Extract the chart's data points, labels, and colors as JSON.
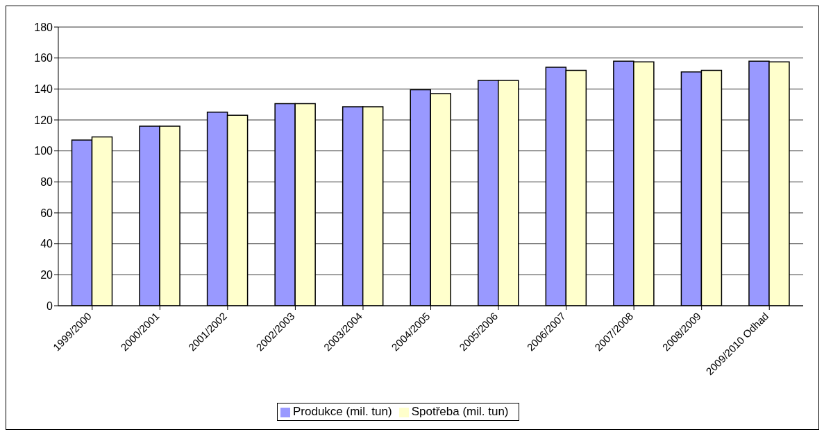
{
  "chart_data": {
    "type": "bar",
    "categories": [
      "1999/2000",
      "2000/2001",
      "2001/2002",
      "2002/2003",
      "2003/2004",
      "2004/2005",
      "2005/2006",
      "2006/2007",
      "2007/2008",
      "2008/2009",
      "2009/2010 Odhad"
    ],
    "series": [
      {
        "name": "Produkce (mil. tun)",
        "color": "#9999ff",
        "values": [
          107,
          116,
          125,
          130.5,
          128.5,
          139.5,
          145.5,
          154,
          158,
          151,
          158
        ]
      },
      {
        "name": "Spotřeba (mil. tun)",
        "color": "#ffffcc",
        "values": [
          109,
          116,
          123,
          130.5,
          128.5,
          137,
          145.5,
          152,
          157.5,
          152,
          157.5
        ]
      }
    ],
    "ylim": [
      0,
      180
    ],
    "yticks": [
      0,
      20,
      40,
      60,
      80,
      100,
      120,
      140,
      160,
      180
    ],
    "grid": "y",
    "legend": "bottom"
  }
}
